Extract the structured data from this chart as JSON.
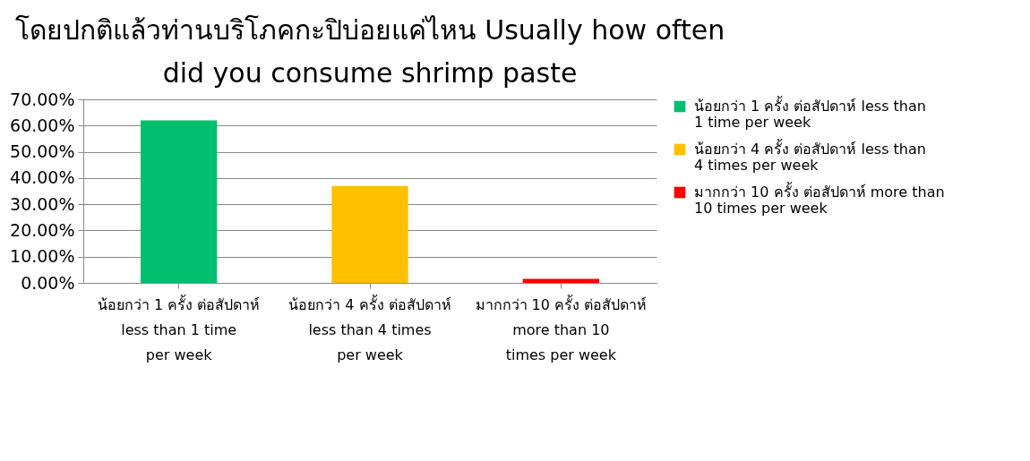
{
  "chart_data": {
    "type": "bar",
    "title": "โดยปกติแล้วท่านบริโภคกะปิบ่อยแค่ไหน Usually how often did you consume shrimp paste",
    "categories": [
      "น้อยกว่า 1 ครั้ง ต่อสัปดาห์ less than 1 time per week",
      "น้อยกว่า 4 ครั้ง ต่อสัปดาห์ less than 4 times per week",
      "มากกว่า 10 ครั้ง ต่อสัปดาห์ more than 10 times per week"
    ],
    "series": [
      {
        "name": "น้อยกว่า 1 ครั้ง ต่อสัปดาห์ less than 1 time per week",
        "color": "#00bf6f",
        "values": [
          62,
          null,
          null
        ]
      },
      {
        "name": "น้อยกว่า 4 ครั้ง ต่อสัปดาห์ less than 4 times per week",
        "color": "#ffc000",
        "values": [
          null,
          37,
          null
        ]
      },
      {
        "name": "มากกว่า 10 ครั้ง ต่อสัปดาห์ more than 10 times per week",
        "color": "#ff0000",
        "values": [
          null,
          null,
          1.5
        ]
      }
    ],
    "ylim": [
      0,
      70
    ],
    "yticks": [
      {
        "value": 0,
        "label": "0.00%"
      },
      {
        "value": 10,
        "label": "10.00%"
      },
      {
        "value": 20,
        "label": "20.00%"
      },
      {
        "value": 30,
        "label": "30.00%"
      },
      {
        "value": 40,
        "label": "40.00%"
      },
      {
        "value": 50,
        "label": "50.00%"
      },
      {
        "value": 60,
        "label": "60.00%"
      },
      {
        "value": 70,
        "label": "70.00%"
      }
    ],
    "grid": "y",
    "legend": "right"
  }
}
